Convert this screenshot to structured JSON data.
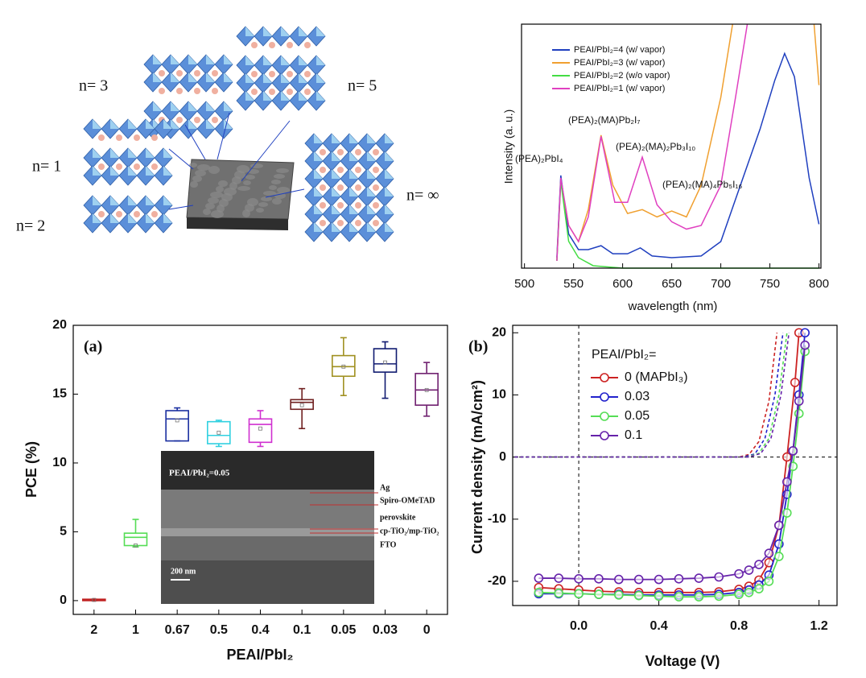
{
  "diagram": {
    "labels": [
      "n= 3",
      "n= 5",
      "n= 1",
      "n= ∞",
      "n= 2"
    ]
  },
  "chart_data": [
    {
      "type": "line",
      "xlabel": "wavelength (nm)",
      "ylabel": "Intensity (a. u.)",
      "xlim": [
        497,
        802
      ],
      "xticks": [
        500,
        550,
        600,
        650,
        700,
        750,
        800
      ],
      "ylim": [
        0,
        100
      ],
      "legend": "upper left",
      "annotations": [
        "(PEA)₂PbI₄",
        "(PEA)₂(MA)Pb₂I₇",
        "(PEA)₂(MA)₂Pb₃I₁₀",
        "(PEA)₂(MA)₄Pb₅I₁₆"
      ],
      "series": [
        {
          "name": "PEAI/PbI₂=4 (w/ vapor)",
          "color": "#1f3fbf",
          "x": [
            533,
            537,
            545,
            555,
            565,
            578,
            590,
            605,
            618,
            630,
            650,
            680,
            700,
            720,
            740,
            755,
            765,
            775,
            790,
            800
          ],
          "values": [
            4.3,
            38,
            14,
            7.6,
            7.6,
            9.2,
            5.9,
            5.9,
            8.3,
            5,
            4.3,
            5,
            10.9,
            34,
            57,
            77,
            88,
            78.5,
            37,
            18
          ]
        },
        {
          "name": "PEAI/PbI₂=3 (w/ vapor)",
          "color": "#f0a030",
          "x": [
            533,
            537,
            545,
            555,
            565,
            578,
            590,
            605,
            620,
            635,
            650,
            665,
            680,
            700,
            712,
            750,
            795,
            800
          ],
          "values": [
            3,
            35.6,
            17.5,
            10.9,
            24,
            54.5,
            34,
            22.4,
            24,
            21,
            23.4,
            21,
            34,
            70,
            100,
            null,
            100,
            75
          ]
        },
        {
          "name": "PEAI/PbI₂=2 (w/o vapor)",
          "color": "#44dd44",
          "x": [
            533,
            537,
            545,
            555,
            570,
            600,
            800
          ],
          "values": [
            3,
            35.6,
            11,
            4.3,
            1,
            0,
            0
          ]
        },
        {
          "name": "PEAI/PbI₂=1 (w/ vapor)",
          "color": "#e040c0",
          "x": [
            533,
            537,
            545,
            555,
            565,
            578,
            592,
            605,
            620,
            635,
            650,
            665,
            680,
            700,
            715,
            727
          ],
          "values": [
            3,
            37,
            17.5,
            10.9,
            21,
            54,
            27,
            27,
            45.5,
            26,
            19,
            16,
            17.5,
            34,
            70,
            100
          ]
        }
      ]
    },
    {
      "type": "box",
      "panel": "(a)",
      "xlabel": "PEAI/PbI₂",
      "ylabel": "PCE (%)",
      "categories": [
        "2",
        "1",
        "0.67",
        "0.5",
        "0.4",
        "0.1",
        "0.05",
        "0.03",
        "0"
      ],
      "ylim": [
        -1,
        20
      ],
      "yticks": [
        0,
        5,
        10,
        15,
        20
      ],
      "boxes": [
        {
          "color": "#c02020",
          "min": 0,
          "q1": 0,
          "median": 0.05,
          "q3": 0.1,
          "max": 0.1,
          "mean": 0.05
        },
        {
          "color": "#55dd55",
          "min": 3.9,
          "q1": 4.0,
          "median": 4.6,
          "q3": 4.9,
          "max": 5.9,
          "mean": 4.0
        },
        {
          "color": "#1a2fa0",
          "min": 11.6,
          "q1": 11.6,
          "median": 13.2,
          "q3": 13.8,
          "max": 14.0,
          "mean": 13.1
        },
        {
          "color": "#30d0e0",
          "min": 11.2,
          "q1": 11.4,
          "median": 12.0,
          "q3": 13.0,
          "max": 13.1,
          "mean": 12.2
        },
        {
          "color": "#d030d0",
          "min": 11.2,
          "q1": 11.5,
          "median": 12.8,
          "q3": 13.2,
          "max": 13.8,
          "mean": 12.5
        },
        {
          "color": "#702020",
          "min": 12.5,
          "q1": 13.9,
          "median": 14.4,
          "q3": 14.6,
          "max": 15.4,
          "mean": 14.2
        },
        {
          "color": "#a09020",
          "min": 14.9,
          "q1": 16.3,
          "median": 17.0,
          "q3": 17.8,
          "max": 19.1,
          "mean": 17.0
        },
        {
          "color": "#101a70",
          "min": 14.7,
          "q1": 16.6,
          "median": 17.2,
          "q3": 18.3,
          "max": 18.8,
          "mean": 17.3
        },
        {
          "color": "#702070",
          "min": 13.4,
          "q1": 14.2,
          "median": 15.3,
          "q3": 16.5,
          "max": 17.3,
          "mean": 15.3
        }
      ],
      "inset": {
        "title": "PEAI/PbI₂=0.05",
        "layers": [
          "Ag",
          "Spiro-OMeTAD",
          "perovskite",
          "cp-TiO₂/mp-TiO₂",
          "FTO"
        ],
        "scale_bar": "200 nm"
      }
    },
    {
      "type": "line",
      "panel": "(b)",
      "xlabel": "Voltage (V)",
      "ylabel": "Current density (mA/cm²)",
      "legend_title": "PEAI/PbI₂=",
      "legend": "upper left",
      "xlim": [
        -0.33,
        1.29
      ],
      "xticks": [
        {
          "value": 0,
          "label": "0.0"
        },
        0.4,
        0.8,
        1.2
      ],
      "ylim": [
        -23.9,
        21.2
      ],
      "yticks": [
        -20,
        -10,
        0,
        10,
        20
      ],
      "series": [
        {
          "name": "0 (MAPbI₃)",
          "color": "#cc2222",
          "x": [
            -0.2,
            -0.1,
            0,
            0.1,
            0.2,
            0.3,
            0.4,
            0.5,
            0.6,
            0.7,
            0.8,
            0.85,
            0.9,
            0.95,
            1.0,
            1.04,
            1.08,
            1.1
          ],
          "values": [
            -21,
            -21.2,
            -21.4,
            -21.6,
            -21.7,
            -21.8,
            -21.8,
            -21.8,
            -21.8,
            -21.7,
            -21.3,
            -20.8,
            -19.8,
            -17,
            -11,
            0,
            12,
            20
          ]
        },
        {
          "name": "0.03",
          "color": "#2222cc",
          "x": [
            -0.2,
            -0.1,
            0,
            0.1,
            0.2,
            0.3,
            0.4,
            0.5,
            0.6,
            0.7,
            0.8,
            0.85,
            0.9,
            0.95,
            1.0,
            1.04,
            1.07,
            1.1,
            1.13
          ],
          "values": [
            -22,
            -22,
            -22,
            -22.1,
            -22.1,
            -22.2,
            -22.2,
            -22.2,
            -22.2,
            -22.1,
            -21.8,
            -21.4,
            -20.6,
            -19,
            -14,
            -6,
            1,
            10,
            20
          ]
        },
        {
          "name": "0.05",
          "color": "#55dd55",
          "x": [
            -0.2,
            -0.1,
            0,
            0.1,
            0.2,
            0.3,
            0.4,
            0.5,
            0.6,
            0.7,
            0.8,
            0.85,
            0.9,
            0.95,
            1.0,
            1.04,
            1.07,
            1.1,
            1.13
          ],
          "values": [
            -21.8,
            -21.9,
            -22,
            -22.1,
            -22.2,
            -22.3,
            -22.4,
            -22.5,
            -22.5,
            -22.4,
            -22.1,
            -21.8,
            -21.2,
            -20,
            -16,
            -9,
            -1.5,
            7,
            17
          ]
        },
        {
          "name": "0.1",
          "color": "#6622aa",
          "x": [
            -0.2,
            -0.1,
            0,
            0.1,
            0.2,
            0.3,
            0.4,
            0.5,
            0.6,
            0.7,
            0.8,
            0.85,
            0.9,
            0.95,
            1.0,
            1.04,
            1.07,
            1.1,
            1.13
          ],
          "values": [
            -19.5,
            -19.5,
            -19.6,
            -19.6,
            -19.7,
            -19.7,
            -19.7,
            -19.6,
            -19.5,
            -19.3,
            -18.8,
            -18.2,
            -17.3,
            -15.5,
            -11,
            -4,
            1,
            9,
            18
          ]
        }
      ],
      "dark_series": [
        {
          "color": "#cc2222",
          "x": [
            -0.32,
            0.8,
            0.85,
            0.9,
            0.95,
            0.99
          ],
          "values": [
            0,
            0,
            0.4,
            2.5,
            9,
            20
          ]
        },
        {
          "color": "#2222cc",
          "x": [
            -0.32,
            0.82,
            0.88,
            0.93,
            0.98,
            1.02
          ],
          "values": [
            0,
            0,
            0.5,
            3,
            10,
            20
          ]
        },
        {
          "color": "#55dd55",
          "x": [
            -0.32,
            0.84,
            0.9,
            0.95,
            1.0,
            1.04
          ],
          "values": [
            0,
            0,
            0.6,
            3,
            10,
            20
          ]
        },
        {
          "color": "#6622aa",
          "x": [
            -0.32,
            0.85,
            0.91,
            0.96,
            1.01,
            1.05
          ],
          "values": [
            0,
            0,
            0.6,
            3,
            10,
            20
          ]
        }
      ]
    }
  ]
}
